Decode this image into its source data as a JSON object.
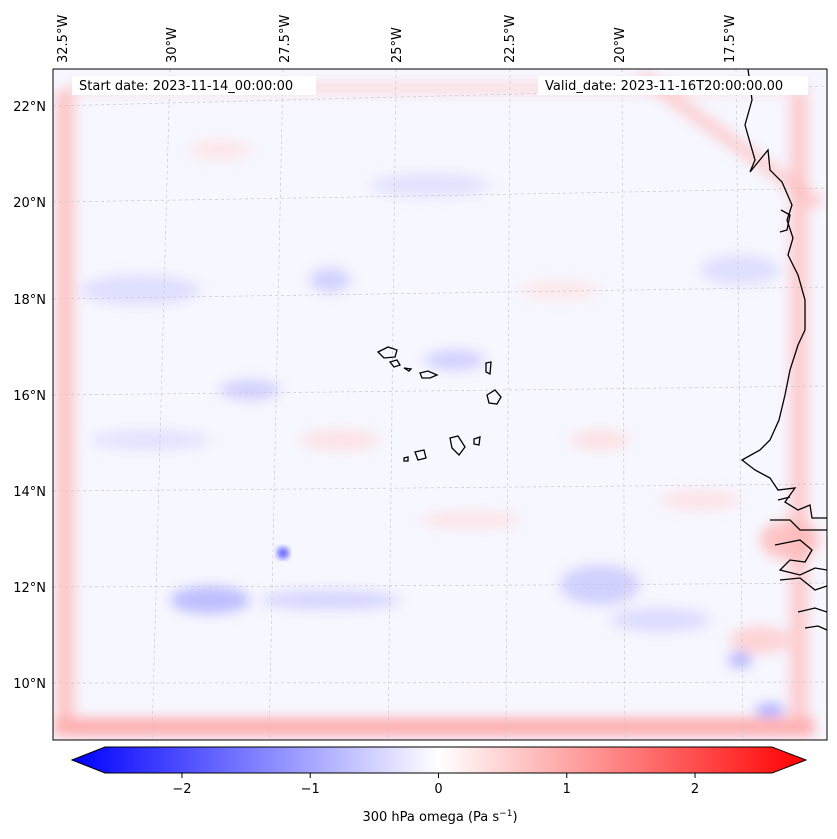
{
  "map": {
    "start_label": "Start date: 2023-11-14_00:00:00",
    "valid_label": "Valid_date: 2023-11-16T20:00:00.00",
    "lon_labels": [
      "32.5°W",
      "30°W",
      "27.5°W",
      "25°W",
      "22.5°W",
      "20°W",
      "17.5°W"
    ],
    "lat_labels": [
      "22°N",
      "20°N",
      "18°N",
      "16°N",
      "14°N",
      "12°N",
      "10°N"
    ],
    "colors": {
      "background": "#f7f7ff",
      "positive": "#ff0000",
      "negative": "#0000ff",
      "coast": "#000000",
      "grid": "#c8c8c8"
    }
  },
  "colorbar": {
    "min": -2.6,
    "max": 2.6,
    "ticks": [
      "−2",
      "−1",
      "0",
      "1",
      "2"
    ],
    "tick_values": [
      -2,
      -1,
      0,
      1,
      2
    ],
    "label_main": "300 hPa omega (Pa s",
    "label_sup": "−1",
    "label_end": ")"
  }
}
